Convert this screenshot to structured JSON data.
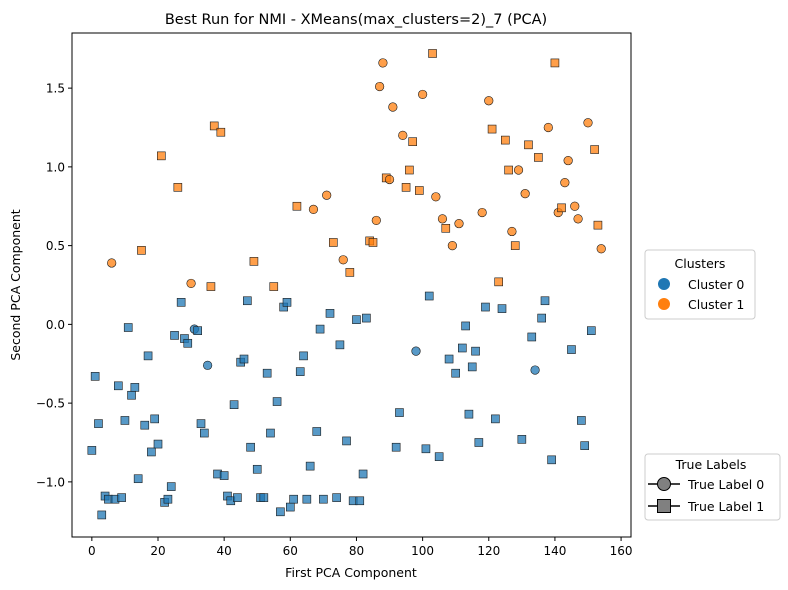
{
  "chart_data": {
    "type": "scatter",
    "title": "Best Run for NMI - XMeans(max_clusters=2)_7 (PCA)",
    "xlabel": "First PCA Component",
    "ylabel": "Second PCA Component",
    "xlim": [
      -6,
      163
    ],
    "ylim": [
      -1.35,
      1.85
    ],
    "xticks": [
      0,
      20,
      40,
      60,
      80,
      100,
      120,
      140,
      160
    ],
    "yticks": [
      -1.0,
      -0.5,
      0.0,
      0.5,
      1.0,
      1.5
    ],
    "xtick_labels": [
      "0",
      "20",
      "40",
      "60",
      "80",
      "100",
      "120",
      "140",
      "160"
    ],
    "ytick_labels": [
      "−1.0",
      "−0.5",
      "0.0",
      "0.5",
      "1.0",
      "1.5"
    ],
    "grid": false,
    "colors": {
      "cluster_0": "#1f77b4",
      "cluster_1": "#ff7f0e"
    },
    "legends": {
      "clusters": {
        "title": "Clusters",
        "placement": "right-center",
        "entries": [
          "Cluster 0",
          "Cluster 1"
        ]
      },
      "true_labels": {
        "title": "True Labels",
        "placement": "right-bottom",
        "entries": [
          "True Label 0",
          "True Label 1"
        ]
      }
    },
    "marker_encoding": {
      "true_label_0": "circle",
      "true_label_1": "square"
    },
    "points": [
      {
        "x": 0,
        "y": -0.8,
        "cluster": 0,
        "label": 1
      },
      {
        "x": 1,
        "y": -0.33,
        "cluster": 0,
        "label": 1
      },
      {
        "x": 2,
        "y": -0.63,
        "cluster": 0,
        "label": 1
      },
      {
        "x": 3,
        "y": -1.21,
        "cluster": 0,
        "label": 1
      },
      {
        "x": 4,
        "y": -1.09,
        "cluster": 0,
        "label": 1
      },
      {
        "x": 5,
        "y": -1.11,
        "cluster": 0,
        "label": 1
      },
      {
        "x": 6,
        "y": 0.39,
        "cluster": 1,
        "label": 0
      },
      {
        "x": 7,
        "y": -1.11,
        "cluster": 0,
        "label": 1
      },
      {
        "x": 8,
        "y": -0.39,
        "cluster": 0,
        "label": 1
      },
      {
        "x": 9,
        "y": -1.1,
        "cluster": 0,
        "label": 1
      },
      {
        "x": 10,
        "y": -0.61,
        "cluster": 0,
        "label": 1
      },
      {
        "x": 11,
        "y": -0.02,
        "cluster": 0,
        "label": 1
      },
      {
        "x": 12,
        "y": -0.45,
        "cluster": 0,
        "label": 1
      },
      {
        "x": 13,
        "y": -0.4,
        "cluster": 0,
        "label": 1
      },
      {
        "x": 14,
        "y": -0.98,
        "cluster": 0,
        "label": 1
      },
      {
        "x": 15,
        "y": 0.47,
        "cluster": 1,
        "label": 1
      },
      {
        "x": 16,
        "y": -0.64,
        "cluster": 0,
        "label": 1
      },
      {
        "x": 17,
        "y": -0.2,
        "cluster": 0,
        "label": 1
      },
      {
        "x": 18,
        "y": -0.81,
        "cluster": 0,
        "label": 1
      },
      {
        "x": 19,
        "y": -0.6,
        "cluster": 0,
        "label": 1
      },
      {
        "x": 20,
        "y": -0.76,
        "cluster": 0,
        "label": 1
      },
      {
        "x": 21,
        "y": 1.07,
        "cluster": 1,
        "label": 1
      },
      {
        "x": 22,
        "y": -1.13,
        "cluster": 0,
        "label": 1
      },
      {
        "x": 23,
        "y": -1.11,
        "cluster": 0,
        "label": 1
      },
      {
        "x": 24,
        "y": -1.03,
        "cluster": 0,
        "label": 1
      },
      {
        "x": 25,
        "y": -0.07,
        "cluster": 0,
        "label": 1
      },
      {
        "x": 26,
        "y": 0.87,
        "cluster": 1,
        "label": 1
      },
      {
        "x": 27,
        "y": 0.14,
        "cluster": 0,
        "label": 1
      },
      {
        "x": 28,
        "y": -0.09,
        "cluster": 0,
        "label": 1
      },
      {
        "x": 29,
        "y": -0.12,
        "cluster": 0,
        "label": 1
      },
      {
        "x": 30,
        "y": 0.26,
        "cluster": 1,
        "label": 0
      },
      {
        "x": 31,
        "y": -0.03,
        "cluster": 0,
        "label": 0
      },
      {
        "x": 32,
        "y": -0.04,
        "cluster": 0,
        "label": 1
      },
      {
        "x": 33,
        "y": -0.63,
        "cluster": 0,
        "label": 1
      },
      {
        "x": 34,
        "y": -0.69,
        "cluster": 0,
        "label": 1
      },
      {
        "x": 35,
        "y": -0.26,
        "cluster": 0,
        "label": 0
      },
      {
        "x": 36,
        "y": 0.24,
        "cluster": 1,
        "label": 1
      },
      {
        "x": 37,
        "y": 1.26,
        "cluster": 1,
        "label": 1
      },
      {
        "x": 38,
        "y": -0.95,
        "cluster": 0,
        "label": 1
      },
      {
        "x": 39,
        "y": 1.22,
        "cluster": 1,
        "label": 1
      },
      {
        "x": 40,
        "y": -0.96,
        "cluster": 0,
        "label": 1
      },
      {
        "x": 41,
        "y": -1.09,
        "cluster": 0,
        "label": 1
      },
      {
        "x": 42,
        "y": -1.12,
        "cluster": 0,
        "label": 1
      },
      {
        "x": 43,
        "y": -0.51,
        "cluster": 0,
        "label": 1
      },
      {
        "x": 44,
        "y": -1.1,
        "cluster": 0,
        "label": 1
      },
      {
        "x": 45,
        "y": -0.24,
        "cluster": 0,
        "label": 1
      },
      {
        "x": 46,
        "y": -0.22,
        "cluster": 0,
        "label": 1
      },
      {
        "x": 47,
        "y": 0.15,
        "cluster": 0,
        "label": 1
      },
      {
        "x": 48,
        "y": -0.78,
        "cluster": 0,
        "label": 1
      },
      {
        "x": 49,
        "y": 0.4,
        "cluster": 1,
        "label": 1
      },
      {
        "x": 50,
        "y": -0.92,
        "cluster": 0,
        "label": 1
      },
      {
        "x": 51,
        "y": -1.1,
        "cluster": 0,
        "label": 1
      },
      {
        "x": 52,
        "y": -1.1,
        "cluster": 0,
        "label": 1
      },
      {
        "x": 53,
        "y": -0.31,
        "cluster": 0,
        "label": 1
      },
      {
        "x": 54,
        "y": -0.69,
        "cluster": 0,
        "label": 1
      },
      {
        "x": 55,
        "y": 0.24,
        "cluster": 1,
        "label": 1
      },
      {
        "x": 56,
        "y": -0.49,
        "cluster": 0,
        "label": 1
      },
      {
        "x": 57,
        "y": -1.19,
        "cluster": 0,
        "label": 1
      },
      {
        "x": 58,
        "y": 0.11,
        "cluster": 0,
        "label": 1
      },
      {
        "x": 59,
        "y": 0.14,
        "cluster": 0,
        "label": 1
      },
      {
        "x": 60,
        "y": -1.16,
        "cluster": 0,
        "label": 1
      },
      {
        "x": 61,
        "y": -1.11,
        "cluster": 0,
        "label": 1
      },
      {
        "x": 62,
        "y": 0.75,
        "cluster": 1,
        "label": 1
      },
      {
        "x": 63,
        "y": -0.3,
        "cluster": 0,
        "label": 1
      },
      {
        "x": 64,
        "y": -0.2,
        "cluster": 0,
        "label": 1
      },
      {
        "x": 65,
        "y": -1.11,
        "cluster": 0,
        "label": 1
      },
      {
        "x": 66,
        "y": -0.9,
        "cluster": 0,
        "label": 1
      },
      {
        "x": 67,
        "y": 0.73,
        "cluster": 1,
        "label": 0
      },
      {
        "x": 68,
        "y": -0.68,
        "cluster": 0,
        "label": 1
      },
      {
        "x": 69,
        "y": -0.03,
        "cluster": 0,
        "label": 1
      },
      {
        "x": 70,
        "y": -1.11,
        "cluster": 0,
        "label": 1
      },
      {
        "x": 71,
        "y": 0.82,
        "cluster": 1,
        "label": 0
      },
      {
        "x": 72,
        "y": 0.07,
        "cluster": 0,
        "label": 1
      },
      {
        "x": 73,
        "y": 0.52,
        "cluster": 1,
        "label": 1
      },
      {
        "x": 74,
        "y": -1.1,
        "cluster": 0,
        "label": 1
      },
      {
        "x": 75,
        "y": -0.13,
        "cluster": 0,
        "label": 1
      },
      {
        "x": 76,
        "y": 0.41,
        "cluster": 1,
        "label": 0
      },
      {
        "x": 77,
        "y": -0.74,
        "cluster": 0,
        "label": 1
      },
      {
        "x": 78,
        "y": 0.33,
        "cluster": 1,
        "label": 1
      },
      {
        "x": 79,
        "y": -1.12,
        "cluster": 0,
        "label": 1
      },
      {
        "x": 80,
        "y": 0.03,
        "cluster": 0,
        "label": 1
      },
      {
        "x": 81,
        "y": -1.12,
        "cluster": 0,
        "label": 1
      },
      {
        "x": 82,
        "y": -0.95,
        "cluster": 0,
        "label": 1
      },
      {
        "x": 83,
        "y": 0.04,
        "cluster": 0,
        "label": 1
      },
      {
        "x": 84,
        "y": 0.53,
        "cluster": 1,
        "label": 1
      },
      {
        "x": 85,
        "y": 0.52,
        "cluster": 1,
        "label": 1
      },
      {
        "x": 86,
        "y": 0.66,
        "cluster": 1,
        "label": 0
      },
      {
        "x": 87,
        "y": 1.51,
        "cluster": 1,
        "label": 0
      },
      {
        "x": 88,
        "y": 1.66,
        "cluster": 1,
        "label": 0
      },
      {
        "x": 89,
        "y": 0.93,
        "cluster": 1,
        "label": 1
      },
      {
        "x": 90,
        "y": 0.92,
        "cluster": 1,
        "label": 0
      },
      {
        "x": 91,
        "y": 1.38,
        "cluster": 1,
        "label": 0
      },
      {
        "x": 92,
        "y": -0.78,
        "cluster": 0,
        "label": 1
      },
      {
        "x": 93,
        "y": -0.56,
        "cluster": 0,
        "label": 1
      },
      {
        "x": 94,
        "y": 1.2,
        "cluster": 1,
        "label": 0
      },
      {
        "x": 95,
        "y": 0.87,
        "cluster": 1,
        "label": 1
      },
      {
        "x": 96,
        "y": 0.98,
        "cluster": 1,
        "label": 1
      },
      {
        "x": 97,
        "y": 1.16,
        "cluster": 1,
        "label": 1
      },
      {
        "x": 98,
        "y": -0.17,
        "cluster": 0,
        "label": 0
      },
      {
        "x": 99,
        "y": 0.85,
        "cluster": 1,
        "label": 1
      },
      {
        "x": 100,
        "y": 1.46,
        "cluster": 1,
        "label": 0
      },
      {
        "x": 101,
        "y": -0.79,
        "cluster": 0,
        "label": 1
      },
      {
        "x": 102,
        "y": 0.18,
        "cluster": 0,
        "label": 1
      },
      {
        "x": 103,
        "y": 1.72,
        "cluster": 1,
        "label": 1
      },
      {
        "x": 104,
        "y": 0.81,
        "cluster": 1,
        "label": 0
      },
      {
        "x": 105,
        "y": -0.84,
        "cluster": 0,
        "label": 1
      },
      {
        "x": 106,
        "y": 0.67,
        "cluster": 1,
        "label": 0
      },
      {
        "x": 107,
        "y": 0.61,
        "cluster": 1,
        "label": 1
      },
      {
        "x": 108,
        "y": -0.22,
        "cluster": 0,
        "label": 1
      },
      {
        "x": 109,
        "y": 0.5,
        "cluster": 1,
        "label": 0
      },
      {
        "x": 110,
        "y": -0.31,
        "cluster": 0,
        "label": 1
      },
      {
        "x": 111,
        "y": 0.64,
        "cluster": 1,
        "label": 0
      },
      {
        "x": 112,
        "y": -0.15,
        "cluster": 0,
        "label": 1
      },
      {
        "x": 113,
        "y": -0.01,
        "cluster": 0,
        "label": 1
      },
      {
        "x": 114,
        "y": -0.57,
        "cluster": 0,
        "label": 1
      },
      {
        "x": 115,
        "y": -0.27,
        "cluster": 0,
        "label": 1
      },
      {
        "x": 116,
        "y": -0.17,
        "cluster": 0,
        "label": 1
      },
      {
        "x": 117,
        "y": -0.75,
        "cluster": 0,
        "label": 1
      },
      {
        "x": 118,
        "y": 0.71,
        "cluster": 1,
        "label": 0
      },
      {
        "x": 119,
        "y": 0.11,
        "cluster": 0,
        "label": 1
      },
      {
        "x": 120,
        "y": 1.42,
        "cluster": 1,
        "label": 0
      },
      {
        "x": 121,
        "y": 1.24,
        "cluster": 1,
        "label": 1
      },
      {
        "x": 122,
        "y": -0.6,
        "cluster": 0,
        "label": 1
      },
      {
        "x": 123,
        "y": 0.27,
        "cluster": 1,
        "label": 1
      },
      {
        "x": 124,
        "y": 0.1,
        "cluster": 0,
        "label": 1
      },
      {
        "x": 125,
        "y": 1.17,
        "cluster": 1,
        "label": 1
      },
      {
        "x": 126,
        "y": 0.98,
        "cluster": 1,
        "label": 1
      },
      {
        "x": 127,
        "y": 0.59,
        "cluster": 1,
        "label": 0
      },
      {
        "x": 128,
        "y": 0.5,
        "cluster": 1,
        "label": 1
      },
      {
        "x": 129,
        "y": 0.98,
        "cluster": 1,
        "label": 0
      },
      {
        "x": 130,
        "y": -0.73,
        "cluster": 0,
        "label": 1
      },
      {
        "x": 131,
        "y": 0.83,
        "cluster": 1,
        "label": 0
      },
      {
        "x": 132,
        "y": 1.14,
        "cluster": 1,
        "label": 1
      },
      {
        "x": 133,
        "y": -0.08,
        "cluster": 0,
        "label": 1
      },
      {
        "x": 134,
        "y": -0.29,
        "cluster": 0,
        "label": 0
      },
      {
        "x": 135,
        "y": 1.06,
        "cluster": 1,
        "label": 1
      },
      {
        "x": 136,
        "y": 0.04,
        "cluster": 0,
        "label": 1
      },
      {
        "x": 137,
        "y": 0.15,
        "cluster": 0,
        "label": 1
      },
      {
        "x": 138,
        "y": 1.25,
        "cluster": 1,
        "label": 0
      },
      {
        "x": 139,
        "y": -0.86,
        "cluster": 0,
        "label": 1
      },
      {
        "x": 140,
        "y": 1.66,
        "cluster": 1,
        "label": 1
      },
      {
        "x": 141,
        "y": 0.71,
        "cluster": 1,
        "label": 0
      },
      {
        "x": 142,
        "y": 0.74,
        "cluster": 1,
        "label": 1
      },
      {
        "x": 143,
        "y": 0.9,
        "cluster": 1,
        "label": 0
      },
      {
        "x": 144,
        "y": 1.04,
        "cluster": 1,
        "label": 0
      },
      {
        "x": 145,
        "y": -0.16,
        "cluster": 0,
        "label": 1
      },
      {
        "x": 146,
        "y": 0.75,
        "cluster": 1,
        "label": 0
      },
      {
        "x": 147,
        "y": 0.67,
        "cluster": 1,
        "label": 0
      },
      {
        "x": 148,
        "y": -0.61,
        "cluster": 0,
        "label": 1
      },
      {
        "x": 149,
        "y": -0.77,
        "cluster": 0,
        "label": 1
      },
      {
        "x": 150,
        "y": 1.28,
        "cluster": 1,
        "label": 0
      },
      {
        "x": 151,
        "y": -0.04,
        "cluster": 0,
        "label": 1
      },
      {
        "x": 152,
        "y": 1.11,
        "cluster": 1,
        "label": 1
      },
      {
        "x": 153,
        "y": 0.63,
        "cluster": 1,
        "label": 1
      },
      {
        "x": 154,
        "y": 0.48,
        "cluster": 1,
        "label": 0
      }
    ]
  }
}
